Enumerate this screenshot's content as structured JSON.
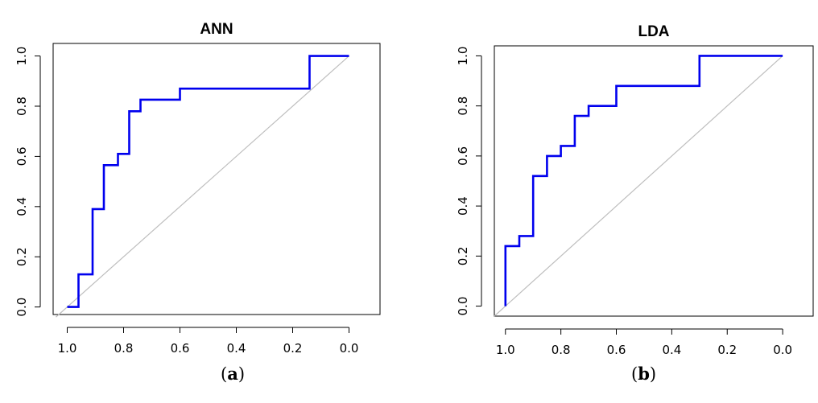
{
  "chart_data": [
    {
      "type": "line",
      "title": "ANN",
      "panel_label": "a",
      "xlim": [
        1.05,
        -0.11
      ],
      "ylim": [
        -0.03,
        1.05
      ],
      "x_ticks": [
        "1.0",
        "0.8",
        "0.6",
        "0.4",
        "0.2",
        "0.0"
      ],
      "x_tick_values": [
        1.0,
        0.8,
        0.6,
        0.4,
        0.2,
        0.0
      ],
      "y_ticks": [
        "0.0",
        "0.2",
        "0.4",
        "0.6",
        "0.8",
        "1.0"
      ],
      "y_tick_values": [
        0.0,
        0.2,
        0.4,
        0.6,
        0.8,
        1.0
      ],
      "curve_color": "#0000ee",
      "reference_color": "#bebebe",
      "series": [
        {
          "x": [
            1.0,
            0.96,
            0.96,
            0.91,
            0.91,
            0.87,
            0.87,
            0.82,
            0.82,
            0.78,
            0.78,
            0.74,
            0.74,
            0.6,
            0.6,
            0.14,
            0.14,
            0.0
          ],
          "y": [
            0.0,
            0.0,
            0.13,
            0.13,
            0.39,
            0.39,
            0.565,
            0.565,
            0.61,
            0.61,
            0.78,
            0.78,
            0.826,
            0.826,
            0.87,
            0.87,
            1.0,
            1.0
          ]
        }
      ],
      "reference_line": {
        "x": [
          1.04,
          0.0
        ],
        "y": [
          -0.04,
          1.0
        ]
      }
    },
    {
      "type": "line",
      "title": "LDA",
      "panel_label": "b",
      "xlim": [
        1.04,
        -0.11
      ],
      "ylim": [
        -0.04,
        1.04
      ],
      "x_ticks": [
        "1.0",
        "0.8",
        "0.6",
        "0.4",
        "0.2",
        "0.0"
      ],
      "x_tick_values": [
        1.0,
        0.8,
        0.6,
        0.4,
        0.2,
        0.0
      ],
      "y_ticks": [
        "0.0",
        "0.2",
        "0.4",
        "0.6",
        "0.8",
        "1.0"
      ],
      "y_tick_values": [
        0.0,
        0.2,
        0.4,
        0.6,
        0.8,
        1.0
      ],
      "curve_color": "#0000ee",
      "reference_color": "#bebebe",
      "series": [
        {
          "x": [
            1.0,
            1.0,
            0.95,
            0.95,
            0.9,
            0.9,
            0.85,
            0.85,
            0.8,
            0.8,
            0.75,
            0.75,
            0.7,
            0.7,
            0.6,
            0.6,
            0.3,
            0.3,
            0.0
          ],
          "y": [
            0.0,
            0.24,
            0.24,
            0.28,
            0.28,
            0.52,
            0.52,
            0.6,
            0.6,
            0.64,
            0.64,
            0.76,
            0.76,
            0.8,
            0.8,
            0.88,
            0.88,
            1.0,
            1.0
          ]
        }
      ],
      "reference_line": {
        "x": [
          1.04,
          0.0
        ],
        "y": [
          -0.04,
          1.0
        ]
      }
    }
  ]
}
